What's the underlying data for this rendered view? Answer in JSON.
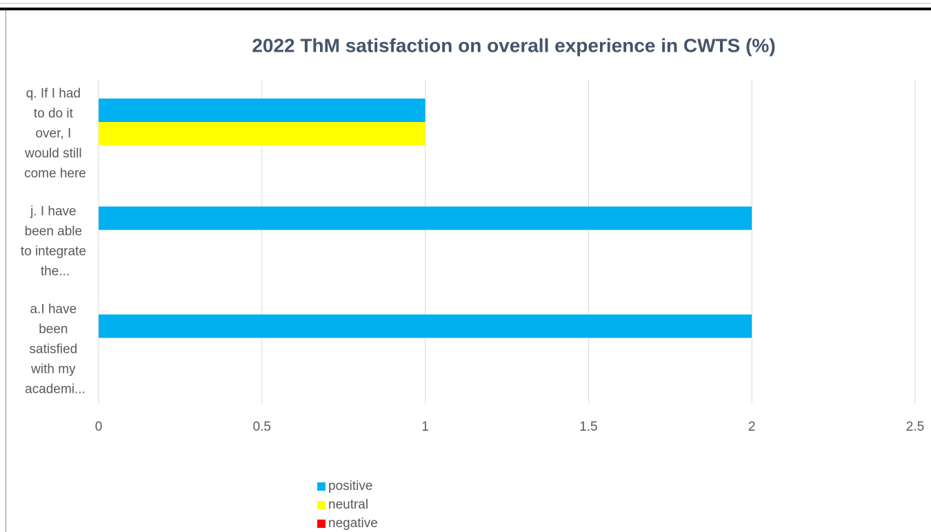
{
  "chart_data": {
    "type": "bar",
    "orientation": "horizontal",
    "title": "2022 ThM  satisfaction on overall experience in CWTS (%)",
    "categories": [
      "q. If I had to do it over, I would still come here",
      "j. I have been able to integrate the...",
      "a.I have been satisfied with my academi..."
    ],
    "series": [
      {
        "name": "positive",
        "color": "#00b0f0",
        "values": [
          1,
          2,
          2
        ]
      },
      {
        "name": "neutral",
        "color": "#ffff00",
        "values": [
          1,
          0,
          0
        ]
      },
      {
        "name": "negative",
        "color": "#ff0000",
        "values": [
          0,
          0,
          0
        ]
      }
    ],
    "xlim": [
      0,
      2.5
    ],
    "xticks": [
      0,
      0.5,
      1,
      1.5,
      2,
      2.5
    ],
    "grid": true,
    "legend": "bottom"
  }
}
